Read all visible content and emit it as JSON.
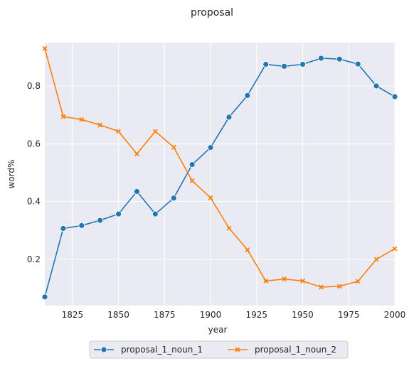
{
  "chart_data": {
    "type": "line",
    "title": "proposal",
    "xlabel": "year",
    "ylabel": "word%",
    "xlim": [
      1810,
      2000
    ],
    "ylim": [
      0.04,
      0.95
    ],
    "x_ticks": [
      1825,
      1850,
      1875,
      1900,
      1925,
      1950,
      1975,
      2000
    ],
    "y_ticks": [
      0.2,
      0.4,
      0.6,
      0.8
    ],
    "grid": true,
    "legend_placement": "bottom-center",
    "x": [
      1810,
      1820,
      1830,
      1840,
      1850,
      1860,
      1870,
      1880,
      1890,
      1900,
      1910,
      1920,
      1930,
      1940,
      1950,
      1960,
      1970,
      1980,
      1990,
      2000
    ],
    "series": [
      {
        "name": "proposal_1_noun_1",
        "color": "#1f77b4",
        "marker": "circle",
        "values": [
          0.07,
          0.307,
          0.317,
          0.335,
          0.357,
          0.435,
          0.357,
          0.412,
          0.528,
          0.587,
          0.692,
          0.767,
          0.875,
          0.868,
          0.875,
          0.896,
          0.893,
          0.876,
          0.8,
          0.763
        ]
      },
      {
        "name": "proposal_1_noun_2",
        "color": "#ff7f0e",
        "marker": "x",
        "values": [
          0.93,
          0.694,
          0.684,
          0.665,
          0.643,
          0.565,
          0.643,
          0.588,
          0.472,
          0.413,
          0.308,
          0.233,
          0.125,
          0.132,
          0.125,
          0.104,
          0.107,
          0.124,
          0.2,
          0.237
        ]
      }
    ]
  }
}
